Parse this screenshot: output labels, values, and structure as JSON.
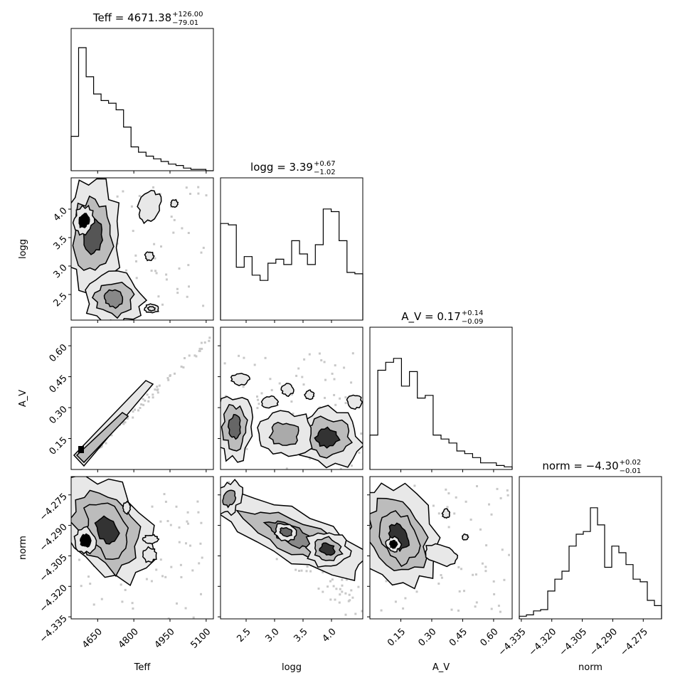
{
  "chart_data": {
    "type": "corner",
    "parameters": [
      {
        "name": "Teff",
        "axis_label": "Teff",
        "range": [
          4540,
          5130
        ],
        "ticks": [
          4650,
          4800,
          4950,
          5100
        ],
        "tick_labels": [
          "4650",
          "4800",
          "4950",
          "5100"
        ]
      },
      {
        "name": "logg",
        "axis_label": "logg",
        "range": [
          2.05,
          4.55
        ],
        "ticks": [
          2.5,
          3.0,
          3.5,
          4.0
        ],
        "tick_labels": [
          "2.5",
          "3.0",
          "3.5",
          "4.0"
        ]
      },
      {
        "name": "A_V",
        "axis_label": "A_V",
        "range": [
          0.0,
          0.69
        ],
        "ticks": [
          0.15,
          0.3,
          0.45,
          0.6
        ],
        "tick_labels": [
          "0.15",
          "0.30",
          "0.45",
          "0.60"
        ]
      },
      {
        "name": "norm",
        "axis_label": "norm",
        "range": [
          -4.336,
          -4.266
        ],
        "ticks": [
          -4.335,
          -4.32,
          -4.305,
          -4.29,
          -4.275
        ],
        "tick_labels": [
          "−4.335",
          "−4.320",
          "−4.305",
          "−4.290",
          "−4.275"
        ]
      }
    ],
    "titles": [
      {
        "text": "Teff = 4671.38",
        "sup": "+126.00",
        "sub": "−79.01"
      },
      {
        "text": "logg = 3.39",
        "sup": "+0.67",
        "sub": "−1.02"
      },
      {
        "text": "A_V = 0.17",
        "sup": "+0.14",
        "sub": "−0.09"
      },
      {
        "text": "norm = −4.30",
        "sup": "+0.02",
        "sub": "−0.01"
      }
    ],
    "histograms": [
      [
        0.26,
        0.93,
        0.71,
        0.58,
        0.53,
        0.51,
        0.46,
        0.33,
        0.18,
        0.14,
        0.11,
        0.09,
        0.07,
        0.05,
        0.04,
        0.02,
        0.01,
        0.01,
        0.0
      ],
      [
        0.73,
        0.72,
        0.4,
        0.48,
        0.34,
        0.3,
        0.43,
        0.46,
        0.42,
        0.6,
        0.5,
        0.42,
        0.57,
        0.84,
        0.82,
        0.6,
        0.36,
        0.35
      ],
      [
        0.26,
        0.75,
        0.81,
        0.84,
        0.63,
        0.74,
        0.54,
        0.56,
        0.26,
        0.23,
        0.2,
        0.14,
        0.12,
        0.09,
        0.05,
        0.05,
        0.03,
        0.02
      ],
      [
        0.02,
        0.03,
        0.06,
        0.07,
        0.21,
        0.3,
        0.36,
        0.55,
        0.64,
        0.66,
        0.84,
        0.71,
        0.39,
        0.55,
        0.5,
        0.41,
        0.3,
        0.28,
        0.14,
        0.1
      ]
    ],
    "grid": false,
    "legend": "none"
  }
}
